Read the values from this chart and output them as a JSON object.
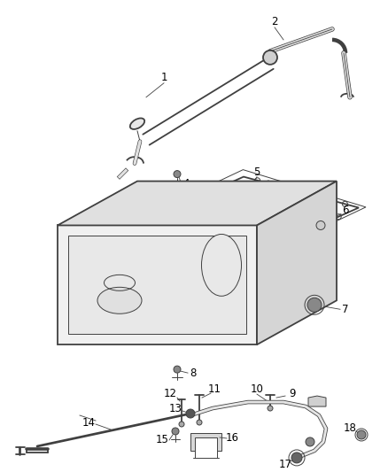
{
  "bg_color": "#ffffff",
  "line_color": "#404040",
  "label_color": "#000000",
  "lw_main": 1.3,
  "lw_thin": 0.7,
  "lw_label": 0.5
}
